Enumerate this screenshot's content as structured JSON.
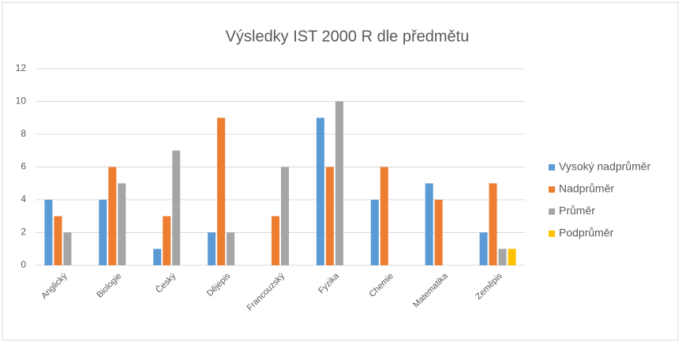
{
  "chart_data": {
    "type": "bar",
    "title": "Výsledky IST 2000 R dle předmětu",
    "categories": [
      "Anglický",
      "Biologie",
      "Český",
      "Dějepis",
      "Francouzský",
      "Fyzika",
      "Chemie",
      "Matematika",
      "Zeměpis"
    ],
    "series": [
      {
        "name": "Vysoký nadprůměr",
        "color": "#5b9bd5",
        "values": [
          4,
          4,
          1,
          2,
          0,
          9,
          4,
          5,
          2
        ]
      },
      {
        "name": "Nadprůměr",
        "color": "#ed7d31",
        "values": [
          3,
          6,
          3,
          9,
          3,
          6,
          6,
          4,
          5
        ]
      },
      {
        "name": "Průměr",
        "color": "#a5a5a5",
        "values": [
          2,
          5,
          7,
          2,
          6,
          10,
          0,
          0,
          1
        ]
      },
      {
        "name": "Podprůměr",
        "color": "#ffc000",
        "values": [
          0,
          0,
          0,
          0,
          0,
          0,
          0,
          0,
          1
        ]
      }
    ],
    "ylim": [
      0,
      12
    ],
    "yticks": [
      0,
      2,
      4,
      6,
      8,
      10,
      12
    ],
    "grid": true,
    "legend": "right"
  }
}
